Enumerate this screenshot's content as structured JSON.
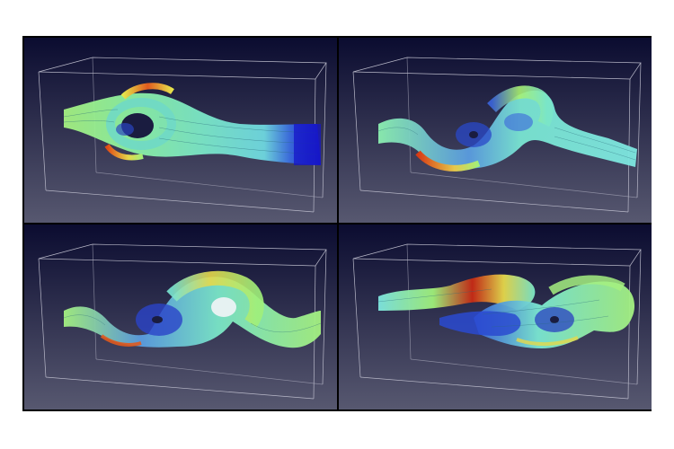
{
  "figure": {
    "kind": "grid of four 3D streamline visualization panels",
    "background_gradient": [
      "#0b0c30",
      "#55566e"
    ],
    "colormap": [
      "#1414c8",
      "#3a64dc",
      "#5ab4e6",
      "#7ee6d2",
      "#a0f07a",
      "#e6e650",
      "#f0a032",
      "#c81e14"
    ],
    "panels": [
      {
        "id": "top-left"
      },
      {
        "id": "top-right"
      },
      {
        "id": "bottom-left"
      },
      {
        "id": "bottom-right"
      }
    ]
  }
}
